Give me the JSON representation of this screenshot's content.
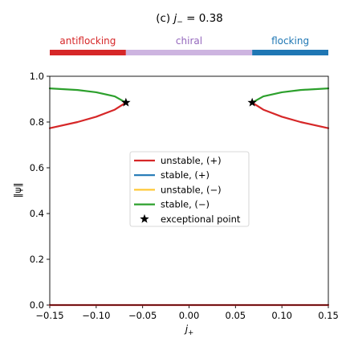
{
  "chart_data": {
    "type": "line",
    "title_prefix": "(c) ",
    "title_var": "j",
    "title_sub": "−",
    "title_suffix": " = 0.38",
    "xlabel_var": "j",
    "xlabel_sub": "+",
    "ylabel": "‖ψ‖",
    "xlim": [
      -0.15,
      0.15
    ],
    "ylim": [
      0.0,
      1.0
    ],
    "xticks": [
      -0.15,
      -0.1,
      -0.05,
      0.0,
      0.05,
      0.1,
      0.15
    ],
    "xtick_labels": [
      "−0.15",
      "−0.10",
      "−0.05",
      "0.00",
      "0.05",
      "0.10",
      "0.15"
    ],
    "yticks": [
      0.0,
      0.2,
      0.4,
      0.6,
      0.8,
      1.0
    ],
    "ytick_labels": [
      "0.0",
      "0.2",
      "0.4",
      "0.6",
      "0.8",
      "1.0"
    ],
    "grid": false,
    "legend_position": "center",
    "phase_bar": [
      {
        "label": "antiflocking",
        "from": -0.15,
        "to": -0.068,
        "color": "#d62728",
        "text_color": "#d62728"
      },
      {
        "label": "chiral",
        "from": -0.068,
        "to": 0.068,
        "color": "#cdb4e0",
        "text_color": "#9467bd"
      },
      {
        "label": "flocking",
        "from": 0.068,
        "to": 0.15,
        "color": "#1f77b4",
        "text_color": "#1f77b4"
      }
    ],
    "series": [
      {
        "name": "unstable, (+)",
        "color": "#d62728",
        "segments": [
          {
            "x": [
              -0.068,
              -0.08,
              -0.1,
              -0.12,
              -0.15
            ],
            "y": [
              0.885,
              0.854,
              0.823,
              0.8,
              0.773
            ]
          },
          {
            "x": [
              0.068,
              0.08,
              0.1,
              0.12,
              0.15
            ],
            "y": [
              0.885,
              0.854,
              0.823,
              0.8,
              0.773
            ]
          },
          {
            "x": [
              -0.15,
              0.15
            ],
            "y": [
              0.0,
              0.0
            ]
          }
        ]
      },
      {
        "name": "stable, (+)",
        "color": "#1f77b4",
        "segments": []
      },
      {
        "name": "unstable, (−)",
        "color": "#ffc838",
        "segments": []
      },
      {
        "name": "stable, (−)",
        "color": "#2ca02c",
        "segments": [
          {
            "x": [
              -0.068,
              -0.08,
              -0.1,
              -0.12,
              -0.15
            ],
            "y": [
              0.885,
              0.912,
              0.93,
              0.94,
              0.947
            ]
          },
          {
            "x": [
              0.068,
              0.08,
              0.1,
              0.12,
              0.15
            ],
            "y": [
              0.885,
              0.912,
              0.93,
              0.94,
              0.947
            ]
          }
        ]
      }
    ],
    "markers": {
      "name": "exceptional point",
      "color": "#000000",
      "points": [
        {
          "x": -0.068,
          "y": 0.885
        },
        {
          "x": 0.068,
          "y": 0.885
        }
      ]
    }
  }
}
